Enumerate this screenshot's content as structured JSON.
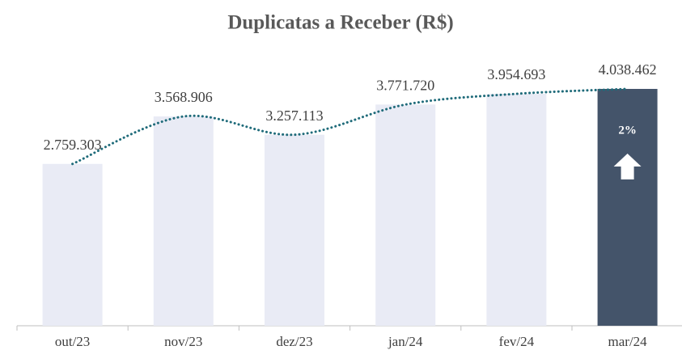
{
  "chart_data": {
    "type": "bar",
    "title": "Duplicatas a Receber (R$)",
    "categories": [
      "out/23",
      "nov/23",
      "dez/23",
      "jan/24",
      "fev/24",
      "mar/24"
    ],
    "values": [
      2759303,
      3568906,
      3257113,
      3771720,
      3954693,
      4038462
    ],
    "value_labels": [
      "2.759.303",
      "3.568.906",
      "3.257.113",
      "3.771.720",
      "3.954.693",
      "4.038.462"
    ],
    "colors": [
      "#e9ebf5",
      "#e9ebf5",
      "#e9ebf5",
      "#e9ebf5",
      "#e9ebf5",
      "#44546a"
    ],
    "line_color": "#1f6b7a",
    "ylim": [
      0,
      4500000
    ],
    "annotation": "2%"
  }
}
